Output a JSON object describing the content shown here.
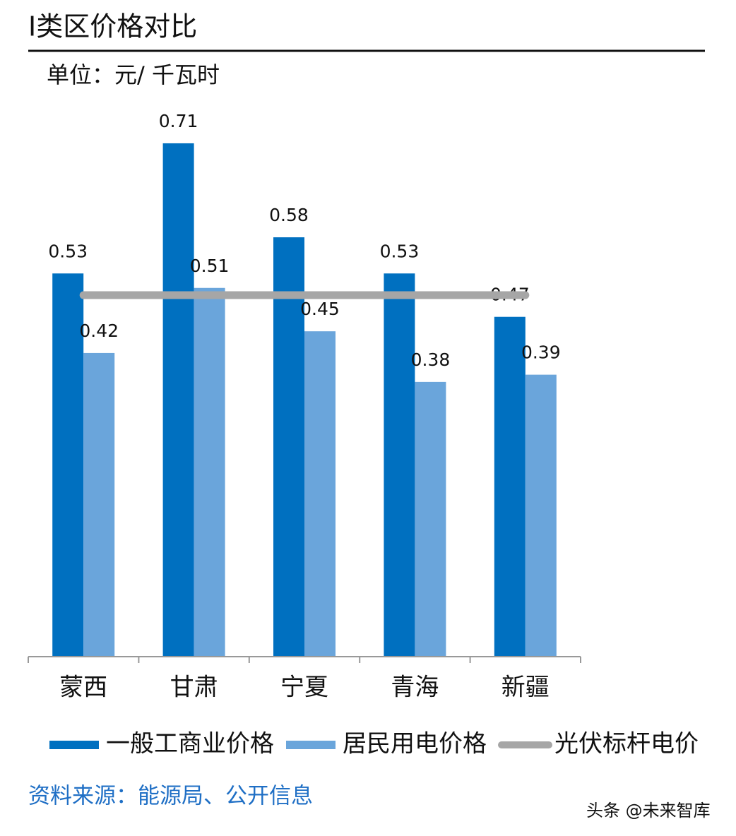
{
  "chart_data": {
    "type": "bar",
    "title": "Ⅰ类区价格对比",
    "subtitle": "单位：元/ 千瓦时",
    "categories": [
      "蒙西",
      "甘肃",
      "宁夏",
      "青海",
      "新疆"
    ],
    "series": [
      {
        "name": "一般工商业价格",
        "color": "#0070c0",
        "type": "bar",
        "values": [
          0.53,
          0.71,
          0.58,
          0.53,
          0.47
        ]
      },
      {
        "name": "居民用电价格",
        "color": "#6aa5db",
        "type": "bar",
        "values": [
          0.42,
          0.51,
          0.45,
          0.38,
          0.39
        ]
      },
      {
        "name": "光伏标杆电价",
        "color": "#a6a6a6",
        "type": "line",
        "values": [
          0.5,
          0.5,
          0.5,
          0.5,
          0.5
        ]
      }
    ],
    "ylim": [
      0,
      0.8
    ],
    "source": "资料来源：能源局、公开信息",
    "watermark": "头条 @未来智库"
  }
}
